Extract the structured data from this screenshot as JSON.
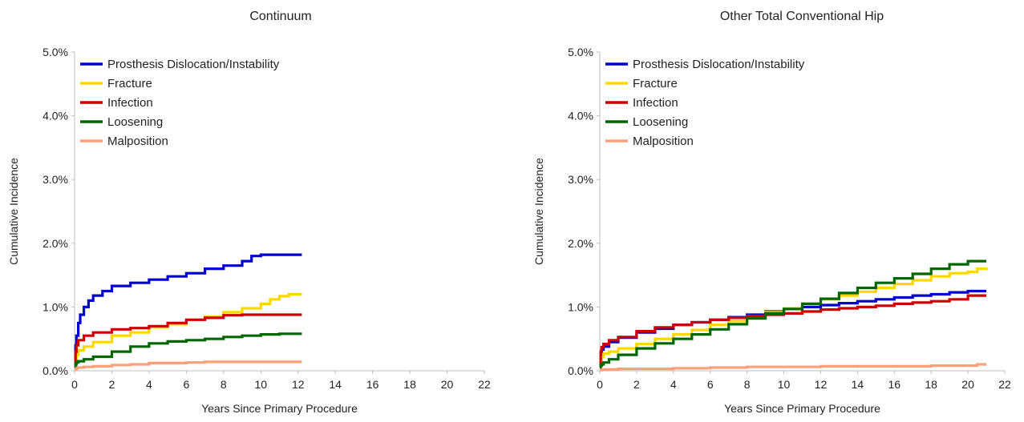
{
  "chart_data": [
    {
      "type": "line",
      "title": "Continuum",
      "xlabel": "Years Since Primary Procedure",
      "ylabel": "Cumulative Incidence",
      "xlim": [
        0,
        22
      ],
      "ylim": [
        0,
        5
      ],
      "xticks": [
        "0",
        "2",
        "4",
        "6",
        "8",
        "10",
        "12",
        "14",
        "16",
        "18",
        "20",
        "22"
      ],
      "yticks": [
        "0.0%",
        "1.0%",
        "2.0%",
        "3.0%",
        "4.0%",
        "5.0%"
      ],
      "legend": "top-left",
      "series": [
        {
          "name": "Prosthesis Dislocation/Instability",
          "color": "#0000cc",
          "x": [
            0,
            0.05,
            0.1,
            0.2,
            0.3,
            0.5,
            0.75,
            1,
            1.5,
            2,
            3,
            4,
            5,
            6,
            7,
            8,
            9,
            9.5,
            10,
            11,
            12.2
          ],
          "y": [
            0.1,
            0.4,
            0.55,
            0.75,
            0.88,
            1.0,
            1.1,
            1.18,
            1.25,
            1.33,
            1.38,
            1.43,
            1.48,
            1.53,
            1.6,
            1.65,
            1.72,
            1.8,
            1.82,
            1.82,
            1.82
          ]
        },
        {
          "name": "Fracture",
          "color": "#ffd700",
          "x": [
            0,
            0.05,
            0.1,
            0.2,
            0.5,
            1,
            2,
            3,
            4,
            5,
            6,
            7,
            8,
            9,
            10,
            10.5,
            11,
            11.5,
            12.2
          ],
          "y": [
            0.05,
            0.15,
            0.25,
            0.32,
            0.38,
            0.45,
            0.55,
            0.6,
            0.68,
            0.73,
            0.8,
            0.85,
            0.92,
            0.98,
            1.05,
            1.12,
            1.17,
            1.2,
            1.2
          ]
        },
        {
          "name": "Infection",
          "color": "#cc0000",
          "x": [
            0,
            0.05,
            0.1,
            0.2,
            0.5,
            1,
            2,
            3,
            4,
            5,
            6,
            7,
            8,
            9,
            10,
            11,
            12.2
          ],
          "y": [
            0.1,
            0.3,
            0.4,
            0.48,
            0.55,
            0.6,
            0.65,
            0.67,
            0.7,
            0.75,
            0.8,
            0.83,
            0.87,
            0.88,
            0.88,
            0.88,
            0.88
          ]
        },
        {
          "name": "Loosening",
          "color": "#006600",
          "x": [
            0,
            0.05,
            0.1,
            0.2,
            0.5,
            1,
            2,
            3,
            4,
            5,
            6,
            7,
            8,
            9,
            10,
            11,
            12.2
          ],
          "y": [
            0.05,
            0.1,
            0.13,
            0.15,
            0.18,
            0.22,
            0.3,
            0.38,
            0.43,
            0.46,
            0.48,
            0.5,
            0.53,
            0.55,
            0.57,
            0.58,
            0.58
          ]
        },
        {
          "name": "Malposition",
          "color": "#ffa07a",
          "x": [
            0,
            0.1,
            0.2,
            0.5,
            1,
            2,
            3,
            4,
            5,
            6,
            7,
            8,
            9,
            10,
            11,
            12.2
          ],
          "y": [
            0.02,
            0.04,
            0.05,
            0.06,
            0.07,
            0.09,
            0.1,
            0.12,
            0.12,
            0.13,
            0.14,
            0.14,
            0.14,
            0.14,
            0.14,
            0.14
          ]
        }
      ]
    },
    {
      "type": "line",
      "title": "Other Total Conventional Hip",
      "xlabel": "Years Since Primary Procedure",
      "ylabel": "Cumulative Incidence",
      "xlim": [
        0,
        22
      ],
      "ylim": [
        0,
        5
      ],
      "xticks": [
        "0",
        "2",
        "4",
        "6",
        "8",
        "10",
        "12",
        "14",
        "16",
        "18",
        "20",
        "22"
      ],
      "yticks": [
        "0.0%",
        "1.0%",
        "2.0%",
        "3.0%",
        "4.0%",
        "5.0%"
      ],
      "legend": "top-left",
      "series": [
        {
          "name": "Prosthesis Dislocation/Instability",
          "color": "#0000cc",
          "x": [
            0,
            0.05,
            0.1,
            0.2,
            0.5,
            1,
            2,
            3,
            4,
            5,
            6,
            7,
            8,
            9,
            10,
            11,
            12,
            13,
            14,
            15,
            16,
            17,
            18,
            19,
            20,
            21
          ],
          "y": [
            0.1,
            0.25,
            0.33,
            0.38,
            0.45,
            0.52,
            0.6,
            0.66,
            0.72,
            0.76,
            0.8,
            0.84,
            0.88,
            0.93,
            0.97,
            1.0,
            1.03,
            1.06,
            1.09,
            1.12,
            1.15,
            1.18,
            1.2,
            1.23,
            1.25,
            1.25
          ]
        },
        {
          "name": "Fracture",
          "color": "#ffd700",
          "x": [
            0,
            0.05,
            0.1,
            0.2,
            0.5,
            1,
            2,
            3,
            4,
            5,
            6,
            7,
            8,
            9,
            10,
            11,
            12,
            13,
            14,
            15,
            16,
            17,
            18,
            19,
            20,
            20.5,
            21
          ],
          "y": [
            0.05,
            0.15,
            0.22,
            0.27,
            0.3,
            0.35,
            0.42,
            0.5,
            0.57,
            0.64,
            0.72,
            0.78,
            0.85,
            0.92,
            0.98,
            1.05,
            1.12,
            1.18,
            1.24,
            1.3,
            1.36,
            1.42,
            1.48,
            1.53,
            1.55,
            1.6,
            1.62
          ]
        },
        {
          "name": "Infection",
          "color": "#cc0000",
          "x": [
            0,
            0.05,
            0.1,
            0.2,
            0.5,
            1,
            2,
            3,
            4,
            5,
            6,
            7,
            8,
            9,
            10,
            11,
            12,
            13,
            14,
            15,
            16,
            17,
            18,
            19,
            20,
            21
          ],
          "y": [
            0.1,
            0.3,
            0.37,
            0.42,
            0.48,
            0.53,
            0.62,
            0.68,
            0.72,
            0.76,
            0.8,
            0.83,
            0.86,
            0.88,
            0.9,
            0.93,
            0.96,
            0.98,
            1.0,
            1.02,
            1.05,
            1.07,
            1.09,
            1.12,
            1.18,
            1.18
          ]
        },
        {
          "name": "Loosening",
          "color": "#006600",
          "x": [
            0,
            0.05,
            0.1,
            0.2,
            0.5,
            1,
            2,
            3,
            4,
            5,
            6,
            7,
            8,
            9,
            10,
            11,
            12,
            13,
            14,
            15,
            16,
            17,
            18,
            19,
            20,
            21
          ],
          "y": [
            0.05,
            0.08,
            0.1,
            0.13,
            0.18,
            0.25,
            0.35,
            0.43,
            0.5,
            0.57,
            0.65,
            0.73,
            0.82,
            0.9,
            0.97,
            1.05,
            1.13,
            1.22,
            1.3,
            1.38,
            1.45,
            1.52,
            1.6,
            1.67,
            1.72,
            1.72
          ]
        },
        {
          "name": "Malposition",
          "color": "#ffa07a",
          "x": [
            0,
            0.1,
            0.5,
            1,
            2,
            4,
            6,
            8,
            10,
            12,
            14,
            16,
            18,
            20,
            20.5,
            21
          ],
          "y": [
            0.01,
            0.02,
            0.02,
            0.03,
            0.03,
            0.04,
            0.05,
            0.06,
            0.06,
            0.07,
            0.07,
            0.07,
            0.08,
            0.08,
            0.1,
            0.1
          ]
        }
      ]
    }
  ]
}
